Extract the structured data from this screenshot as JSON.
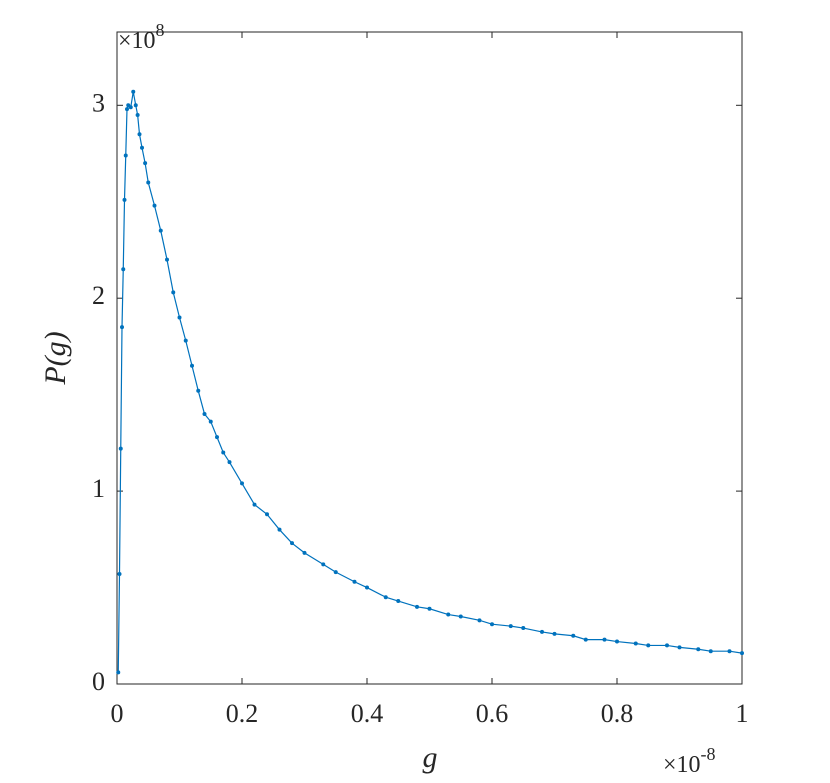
{
  "chart_data": {
    "type": "line",
    "x_label": "g",
    "y_label": "P(g)",
    "x_multiplier": {
      "base": "×10",
      "exponent": "-8"
    },
    "y_multiplier": {
      "base": "×10",
      "exponent": "8"
    },
    "xlim": [
      0,
      1
    ],
    "ylim": [
      0,
      3.38
    ],
    "xticks": [
      0,
      0.2,
      0.4,
      0.6,
      0.8,
      1
    ],
    "yticks": [
      0,
      1,
      2,
      3
    ],
    "x": [
      0.002,
      0.004,
      0.006,
      0.008,
      0.01,
      0.012,
      0.014,
      0.016,
      0.018,
      0.022,
      0.026,
      0.03,
      0.033,
      0.036,
      0.04,
      0.045,
      0.05,
      0.06,
      0.07,
      0.08,
      0.09,
      0.1,
      0.11,
      0.12,
      0.13,
      0.14,
      0.15,
      0.16,
      0.17,
      0.18,
      0.2,
      0.22,
      0.24,
      0.26,
      0.28,
      0.3,
      0.33,
      0.35,
      0.38,
      0.4,
      0.43,
      0.45,
      0.48,
      0.5,
      0.53,
      0.55,
      0.58,
      0.6,
      0.63,
      0.65,
      0.68,
      0.7,
      0.73,
      0.75,
      0.78,
      0.8,
      0.83,
      0.85,
      0.88,
      0.9,
      0.93,
      0.95,
      0.98,
      1.0
    ],
    "series": [
      {
        "color": "#0072bd",
        "values": [
          0.06,
          0.57,
          1.22,
          1.85,
          2.15,
          2.51,
          2.74,
          2.98,
          3.0,
          2.99,
          3.07,
          3.0,
          2.95,
          2.85,
          2.78,
          2.7,
          2.6,
          2.48,
          2.35,
          2.2,
          2.03,
          1.9,
          1.78,
          1.65,
          1.52,
          1.4,
          1.36,
          1.28,
          1.2,
          1.15,
          1.04,
          0.93,
          0.88,
          0.8,
          0.73,
          0.68,
          0.62,
          0.58,
          0.53,
          0.5,
          0.45,
          0.43,
          0.4,
          0.39,
          0.36,
          0.35,
          0.33,
          0.31,
          0.3,
          0.29,
          0.27,
          0.26,
          0.25,
          0.23,
          0.23,
          0.22,
          0.21,
          0.2,
          0.2,
          0.19,
          0.18,
          0.17,
          0.17,
          0.16
        ]
      }
    ]
  }
}
